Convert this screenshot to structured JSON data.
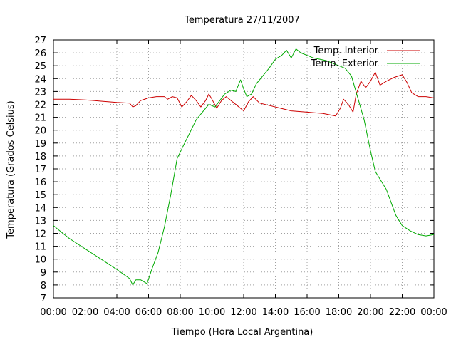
{
  "chart_data": {
    "type": "line",
    "title": "Temperatura 27/11/2007",
    "xlabel": "Tiempo (Hora Local Argentina)",
    "ylabel": "Temperatura (Grados Celsius)",
    "xlim": [
      0,
      24
    ],
    "ylim": [
      7,
      27
    ],
    "x_tick_labels": [
      "00:00",
      "02:00",
      "04:00",
      "06:00",
      "08:00",
      "10:00",
      "12:00",
      "14:00",
      "16:00",
      "18:00",
      "20:00",
      "22:00",
      "00:00"
    ],
    "y_tick_labels": [
      "7",
      "8",
      "9",
      "10",
      "11",
      "12",
      "13",
      "14",
      "15",
      "16",
      "17",
      "18",
      "19",
      "20",
      "21",
      "22",
      "23",
      "24",
      "25",
      "26",
      "27"
    ],
    "grid": true,
    "legend_position": "top-right",
    "series": [
      {
        "name": "Temp. Interior",
        "color": "#cc0000",
        "points": [
          [
            0.0,
            22.4
          ],
          [
            1.0,
            22.4
          ],
          [
            2.0,
            22.35
          ],
          [
            3.0,
            22.25
          ],
          [
            4.0,
            22.15
          ],
          [
            4.8,
            22.1
          ],
          [
            5.0,
            21.8
          ],
          [
            5.2,
            21.9
          ],
          [
            5.5,
            22.3
          ],
          [
            6.0,
            22.5
          ],
          [
            6.5,
            22.6
          ],
          [
            7.0,
            22.6
          ],
          [
            7.2,
            22.4
          ],
          [
            7.5,
            22.6
          ],
          [
            7.8,
            22.5
          ],
          [
            8.1,
            21.8
          ],
          [
            8.4,
            22.2
          ],
          [
            8.7,
            22.7
          ],
          [
            9.0,
            22.3
          ],
          [
            9.3,
            21.8
          ],
          [
            9.6,
            22.3
          ],
          [
            9.8,
            22.8
          ],
          [
            10.0,
            22.4
          ],
          [
            10.3,
            21.7
          ],
          [
            10.6,
            22.3
          ],
          [
            10.9,
            22.6
          ],
          [
            11.2,
            22.3
          ],
          [
            11.6,
            21.9
          ],
          [
            12.0,
            21.5
          ],
          [
            12.3,
            22.2
          ],
          [
            12.6,
            22.6
          ],
          [
            13.0,
            22.1
          ],
          [
            14.0,
            21.8
          ],
          [
            15.0,
            21.5
          ],
          [
            16.0,
            21.4
          ],
          [
            17.0,
            21.3
          ],
          [
            17.8,
            21.1
          ],
          [
            18.1,
            21.7
          ],
          [
            18.3,
            22.4
          ],
          [
            18.6,
            22.0
          ],
          [
            18.9,
            21.4
          ],
          [
            19.1,
            22.8
          ],
          [
            19.4,
            23.8
          ],
          [
            19.7,
            23.3
          ],
          [
            20.0,
            23.8
          ],
          [
            20.3,
            24.5
          ],
          [
            20.6,
            23.5
          ],
          [
            21.0,
            23.8
          ],
          [
            21.5,
            24.1
          ],
          [
            22.0,
            24.3
          ],
          [
            22.3,
            23.7
          ],
          [
            22.6,
            22.9
          ],
          [
            23.0,
            22.6
          ],
          [
            23.5,
            22.6
          ],
          [
            24.0,
            22.5
          ]
        ]
      },
      {
        "name": "Temp. Exterior",
        "color": "#00aa00",
        "points": [
          [
            0.0,
            12.6
          ],
          [
            0.5,
            12.1
          ],
          [
            1.0,
            11.6
          ],
          [
            1.5,
            11.2
          ],
          [
            2.0,
            10.8
          ],
          [
            3.0,
            10.0
          ],
          [
            4.0,
            9.2
          ],
          [
            4.8,
            8.5
          ],
          [
            5.0,
            8.0
          ],
          [
            5.2,
            8.4
          ],
          [
            5.5,
            8.4
          ],
          [
            5.9,
            8.1
          ],
          [
            6.2,
            9.2
          ],
          [
            6.6,
            10.5
          ],
          [
            7.0,
            12.5
          ],
          [
            7.4,
            15.0
          ],
          [
            7.8,
            17.8
          ],
          [
            8.2,
            18.8
          ],
          [
            8.6,
            19.8
          ],
          [
            9.0,
            20.8
          ],
          [
            9.4,
            21.4
          ],
          [
            9.8,
            22.0
          ],
          [
            10.2,
            21.8
          ],
          [
            10.5,
            22.3
          ],
          [
            10.8,
            22.8
          ],
          [
            11.2,
            23.1
          ],
          [
            11.5,
            23.0
          ],
          [
            11.8,
            23.9
          ],
          [
            12.0,
            23.2
          ],
          [
            12.2,
            22.6
          ],
          [
            12.5,
            22.8
          ],
          [
            12.8,
            23.6
          ],
          [
            13.2,
            24.2
          ],
          [
            13.6,
            24.8
          ],
          [
            14.0,
            25.5
          ],
          [
            14.4,
            25.8
          ],
          [
            14.7,
            26.2
          ],
          [
            15.0,
            25.6
          ],
          [
            15.3,
            26.3
          ],
          [
            15.6,
            26.0
          ],
          [
            16.0,
            25.8
          ],
          [
            16.4,
            25.6
          ],
          [
            16.8,
            25.5
          ],
          [
            17.2,
            25.4
          ],
          [
            17.6,
            25.2
          ],
          [
            18.0,
            25.0
          ],
          [
            18.4,
            24.8
          ],
          [
            18.8,
            24.2
          ],
          [
            19.2,
            22.5
          ],
          [
            19.6,
            20.8
          ],
          [
            20.0,
            18.4
          ],
          [
            20.3,
            16.8
          ],
          [
            20.6,
            16.2
          ],
          [
            21.0,
            15.4
          ],
          [
            21.3,
            14.4
          ],
          [
            21.6,
            13.4
          ],
          [
            22.0,
            12.6
          ],
          [
            22.5,
            12.2
          ],
          [
            23.0,
            11.9
          ],
          [
            23.5,
            11.8
          ],
          [
            24.0,
            11.9
          ]
        ]
      }
    ]
  }
}
